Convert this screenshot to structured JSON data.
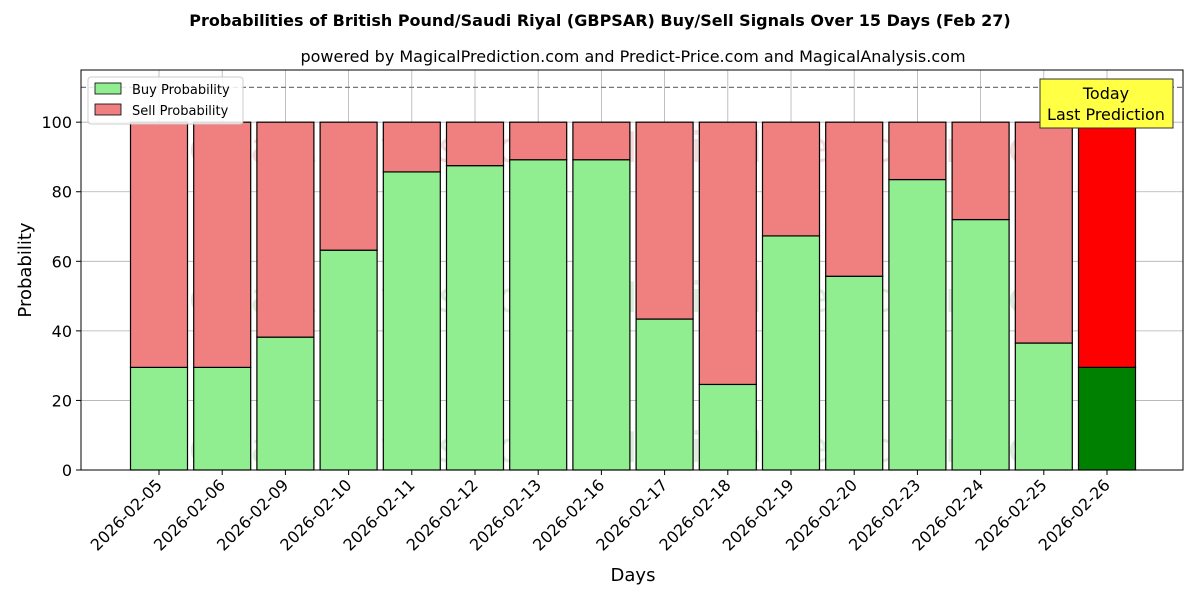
{
  "chart_data": {
    "type": "bar",
    "stacked": true,
    "title": "Probabilities of British Pound/Saudi Riyal (GBPSAR) Buy/Sell Signals Over 15 Days (Feb 27)",
    "subtitle": "powered by MagicalPrediction.com and Predict-Price.com and MagicalAnalysis.com",
    "xlabel": "Days",
    "ylabel": "Probability",
    "ylim": [
      0,
      115
    ],
    "yticks": [
      0,
      20,
      40,
      60,
      80,
      100
    ],
    "reference_line": 110,
    "grid": true,
    "legend_position": "top-left",
    "categories": [
      "2026-02-05",
      "2026-02-06",
      "2026-02-09",
      "2026-02-10",
      "2026-02-11",
      "2026-02-12",
      "2026-02-13",
      "2026-02-16",
      "2026-02-17",
      "2026-02-18",
      "2026-02-19",
      "2026-02-20",
      "2026-02-23",
      "2026-02-24",
      "2026-02-25",
      "2026-02-26"
    ],
    "series": [
      {
        "name": "Buy Probability",
        "color": "#90ee90",
        "values": [
          29.5,
          29.5,
          38.2,
          63.2,
          85.7,
          87.5,
          89.2,
          89.2,
          43.4,
          24.6,
          67.3,
          55.7,
          83.5,
          72.0,
          36.5,
          29.5
        ]
      },
      {
        "name": "Sell Probability",
        "color": "#f08080",
        "values": [
          70.5,
          70.5,
          61.8,
          36.8,
          14.3,
          12.5,
          10.8,
          10.8,
          56.6,
          75.4,
          32.7,
          44.3,
          16.5,
          28.0,
          63.5,
          70.5
        ]
      }
    ],
    "highlight": {
      "index": 15,
      "buy_color": "#008000",
      "sell_color": "#ff0000"
    },
    "annotation": {
      "lines": [
        "Today",
        "Last Prediction"
      ],
      "bg": "#ffff44"
    },
    "watermarks": [
      "MagicalAnalysis.com",
      "MagicalPrediction.com"
    ]
  }
}
